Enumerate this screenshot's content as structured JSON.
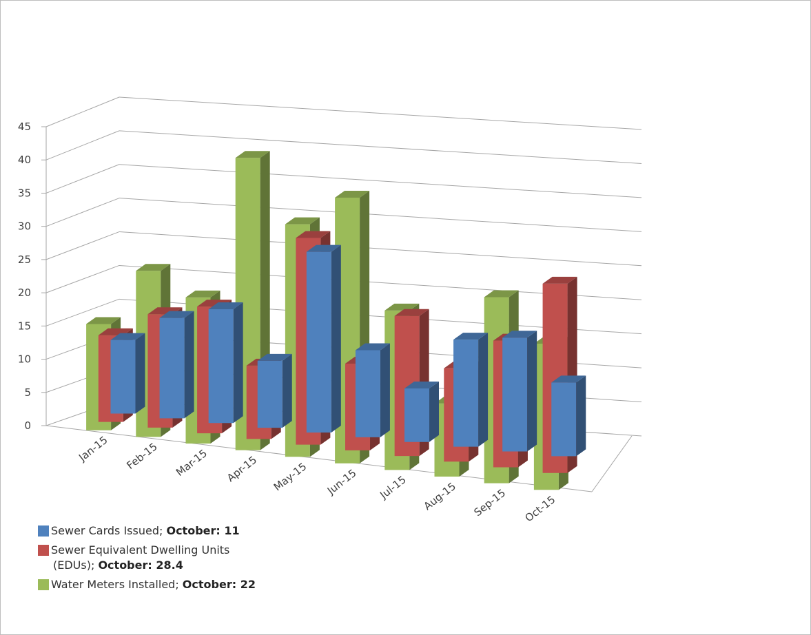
{
  "chart_data": {
    "type": "bar",
    "style": "3d-clustered-depth",
    "categories": [
      "Jan-15",
      "Feb-15",
      "Mar-15",
      "Apr-15",
      "May-15",
      "Jun-15",
      "Jul-15",
      "Aug-15",
      "Sep-15",
      "Oct-15"
    ],
    "ylim": [
      0,
      45
    ],
    "yticks": [
      "0",
      "5",
      "10",
      "15",
      "20",
      "25",
      "30",
      "35",
      "40",
      "45"
    ],
    "grid": true,
    "legend_position": "bottom-left",
    "series": [
      {
        "name": "Sewer Cards Issued",
        "label_bold": "October: 11",
        "color": "#4f81bd",
        "values": [
          11,
          15,
          17,
          10,
          27,
          13,
          8,
          16,
          17,
          11
        ]
      },
      {
        "name": "Sewer Equivalent Dwelling Units (EDUs)",
        "label_bold": "October: 28.4",
        "color": "#c0504d",
        "values": [
          13,
          17,
          19,
          11,
          31,
          13,
          21,
          14,
          19,
          28.4
        ]
      },
      {
        "name": "Water Meters Installed",
        "label_bold": "October: 22",
        "color": "#9bbb59",
        "values": [
          16,
          25,
          22,
          44,
          35,
          40,
          24,
          11,
          28,
          22
        ]
      }
    ]
  },
  "legend": {
    "items": [
      {
        "text": "Sewer Cards Issued;",
        "bold": "October: 11",
        "color": "#4f81bd"
      },
      {
        "text": "Sewer Equivalent Dwelling Units",
        "text2": "(EDUs);",
        "bold": "October: 28.4",
        "color": "#c0504d"
      },
      {
        "text": "Water Meters Installed;",
        "bold": "October: 22",
        "color": "#9bbb59"
      }
    ]
  }
}
